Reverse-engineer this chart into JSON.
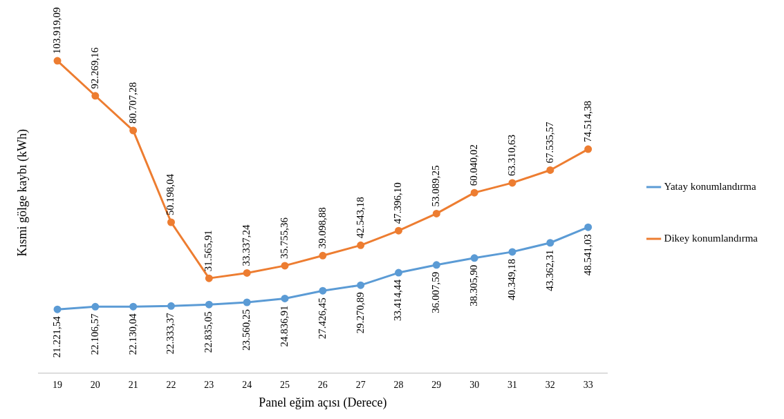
{
  "chart_data": {
    "type": "line",
    "xlabel": "Panel eğim açısı (Derece)",
    "ylabel": "Kısmi gölge kaybı (kWh)",
    "categories": [
      "19",
      "20",
      "21",
      "22",
      "23",
      "24",
      "25",
      "26",
      "27",
      "28",
      "29",
      "30",
      "31",
      "32",
      "33"
    ],
    "tick_labels": "x",
    "grid": false,
    "legend": "right",
    "marker": "circle",
    "line_style": "solid",
    "data_labels": true,
    "series": [
      {
        "name": "Yatay konumlandırma",
        "color": "#5b9bd5",
        "values": [
          21221.54,
          22106.57,
          22130.04,
          22333.37,
          22835.05,
          23560.25,
          24836.91,
          27426.45,
          29270.89,
          33414.44,
          36007.59,
          38305.9,
          40349.18,
          43362.31,
          48541.03
        ],
        "value_labels": [
          "21.221,54",
          "22.106,57",
          "22.130,04",
          "22.333,37",
          "22.835,05",
          "23.560,25",
          "24.836,91",
          "27.426,45",
          "29.270,89",
          "33.414,44",
          "36.007,59",
          "38.305,90",
          "40.349,18",
          "43.362,31",
          "48.541,03"
        ]
      },
      {
        "name": "Dikey konumlandırma",
        "color": "#ed7d31",
        "values": [
          103919.09,
          92269.16,
          80707.28,
          50198.04,
          31565.91,
          33337.24,
          35755.36,
          39098.88,
          42543.18,
          47396.1,
          53089.25,
          60040.02,
          63310.63,
          67535.57,
          74514.38
        ],
        "value_labels": [
          "103.919,09",
          "92.269,16",
          "80.707,28",
          "50.198,04",
          "31.565,91",
          "33.337,24",
          "35.755,36",
          "39.098,88",
          "42.543,18",
          "47.396,10",
          "53.089,25",
          "60.040,02",
          "63.310,63",
          "67.535,57",
          "74.514,38"
        ]
      }
    ]
  }
}
